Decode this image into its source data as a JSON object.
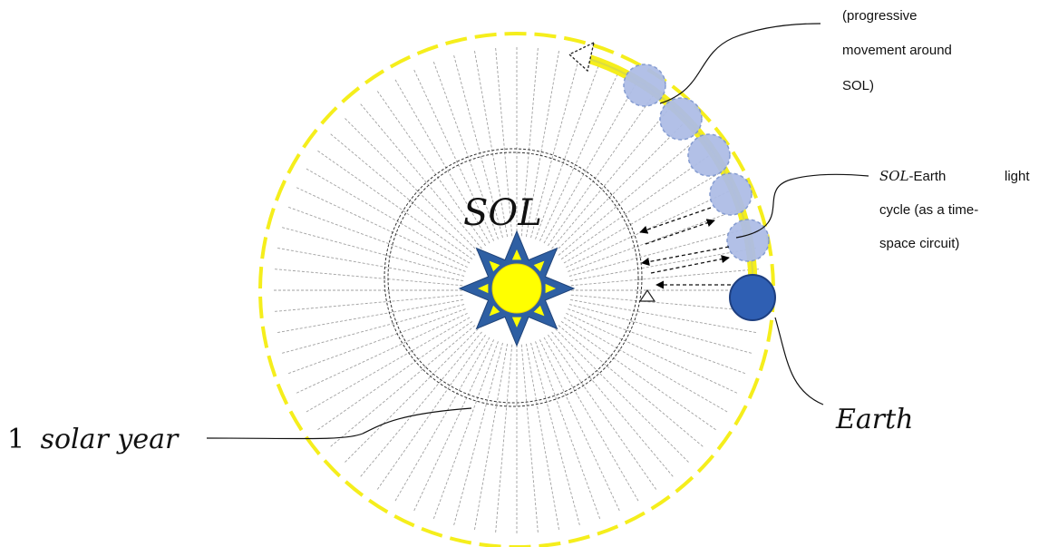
{
  "labels": {
    "sol": "SOL",
    "earth": "Earth",
    "year_number": "1",
    "year_text": "solar year",
    "movement": [
      "(progressive",
      "movement around",
      "SOL)"
    ],
    "cycle_line1_a": "SOL",
    "cycle_line1_b": "-Earth",
    "cycle_line1_c": "light",
    "cycle_line2": "cycle (as a time-",
    "cycle_line3": "space circuit)"
  },
  "colors": {
    "orbit": "#f5ee1c",
    "sun": "#ffff00",
    "star": "#2e5fa3",
    "earth": "#2f5fb3",
    "ghost_earth": "#aebde6",
    "ray": "#a0a0a0",
    "inner_circle": "#333333"
  }
}
